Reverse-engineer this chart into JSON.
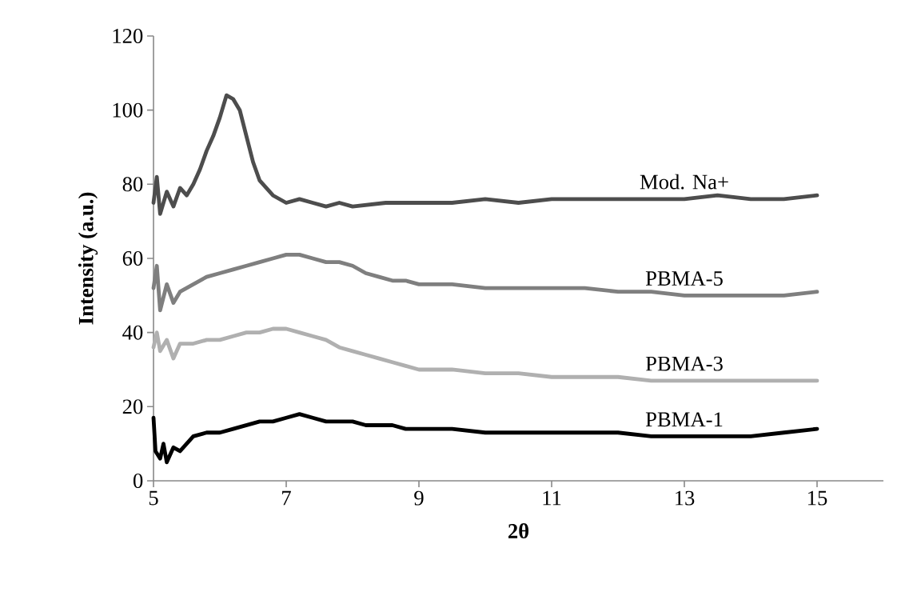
{
  "chart_data": {
    "type": "line",
    "xlabel": "2θ",
    "ylabel": "Intensity (a.u.)",
    "xlim": [
      5,
      16
    ],
    "xticks": [
      5,
      7,
      9,
      11,
      13,
      15
    ],
    "ylim": [
      0,
      120
    ],
    "yticks": [
      0,
      20,
      40,
      60,
      80,
      100,
      120
    ],
    "grid": false,
    "legend": false,
    "line_style": "solid",
    "series": [
      {
        "name": "Mod. Na+",
        "color": "#4d4d4d",
        "x": [
          5,
          5.05,
          5.1,
          5.2,
          5.3,
          5.4,
          5.5,
          5.6,
          5.7,
          5.8,
          5.9,
          6.0,
          6.1,
          6.2,
          6.3,
          6.4,
          6.5,
          6.6,
          6.8,
          7.0,
          7.2,
          7.4,
          7.6,
          7.8,
          8.0,
          8.5,
          9,
          9.5,
          10,
          10.5,
          11,
          11.5,
          12,
          12.5,
          13,
          13.5,
          14,
          14.5,
          15
        ],
        "values": [
          75,
          82,
          72,
          78,
          74,
          79,
          77,
          80,
          84,
          89,
          93,
          98,
          104,
          103,
          100,
          93,
          86,
          81,
          77,
          75,
          76,
          75,
          74,
          75,
          74,
          75,
          75,
          75,
          76,
          75,
          76,
          76,
          76,
          76,
          76,
          77,
          76,
          76,
          77
        ]
      },
      {
        "name": "PBMA-5",
        "color": "#7f7f7f",
        "x": [
          5,
          5.05,
          5.1,
          5.2,
          5.3,
          5.4,
          5.6,
          5.8,
          6.0,
          6.2,
          6.4,
          6.6,
          6.8,
          7.0,
          7.2,
          7.4,
          7.6,
          7.8,
          8.0,
          8.2,
          8.4,
          8.6,
          8.8,
          9.0,
          9.5,
          10,
          10.5,
          11,
          11.5,
          12,
          12.5,
          13,
          13.5,
          14,
          14.5,
          15
        ],
        "values": [
          52,
          58,
          46,
          53,
          48,
          51,
          53,
          55,
          56,
          57,
          58,
          59,
          60,
          61,
          61,
          60,
          59,
          59,
          58,
          56,
          55,
          54,
          54,
          53,
          53,
          52,
          52,
          52,
          52,
          51,
          51,
          50,
          50,
          50,
          50,
          51
        ]
      },
      {
        "name": "PBMA-3",
        "color": "#b0b0b0",
        "x": [
          5,
          5.05,
          5.1,
          5.2,
          5.3,
          5.4,
          5.6,
          5.8,
          6.0,
          6.2,
          6.4,
          6.6,
          6.8,
          7.0,
          7.2,
          7.4,
          7.6,
          7.8,
          8.0,
          8.2,
          8.4,
          8.6,
          8.8,
          9.0,
          9.5,
          10,
          10.5,
          11,
          11.5,
          12,
          12.5,
          13,
          13.5,
          14,
          14.5,
          15
        ],
        "values": [
          36,
          40,
          35,
          38,
          33,
          37,
          37,
          38,
          38,
          39,
          40,
          40,
          41,
          41,
          40,
          39,
          38,
          36,
          35,
          34,
          33,
          32,
          31,
          30,
          30,
          29,
          29,
          28,
          28,
          28,
          27,
          27,
          27,
          27,
          27,
          27
        ]
      },
      {
        "name": "PBMA-1",
        "color": "#000000",
        "x": [
          5,
          5.03,
          5.1,
          5.15,
          5.2,
          5.3,
          5.4,
          5.6,
          5.8,
          6.0,
          6.2,
          6.4,
          6.6,
          6.8,
          7.0,
          7.2,
          7.4,
          7.6,
          7.8,
          8.0,
          8.2,
          8.4,
          8.6,
          8.8,
          9.0,
          9.5,
          10,
          10.5,
          11,
          11.5,
          12,
          12.5,
          13,
          13.5,
          14,
          14.5,
          15
        ],
        "values": [
          17,
          8,
          6,
          10,
          5,
          9,
          8,
          12,
          13,
          13,
          14,
          15,
          16,
          16,
          17,
          18,
          17,
          16,
          16,
          16,
          15,
          15,
          15,
          14,
          14,
          14,
          13,
          13,
          13,
          13,
          13,
          12,
          12,
          12,
          12,
          13,
          14
        ]
      }
    ]
  }
}
